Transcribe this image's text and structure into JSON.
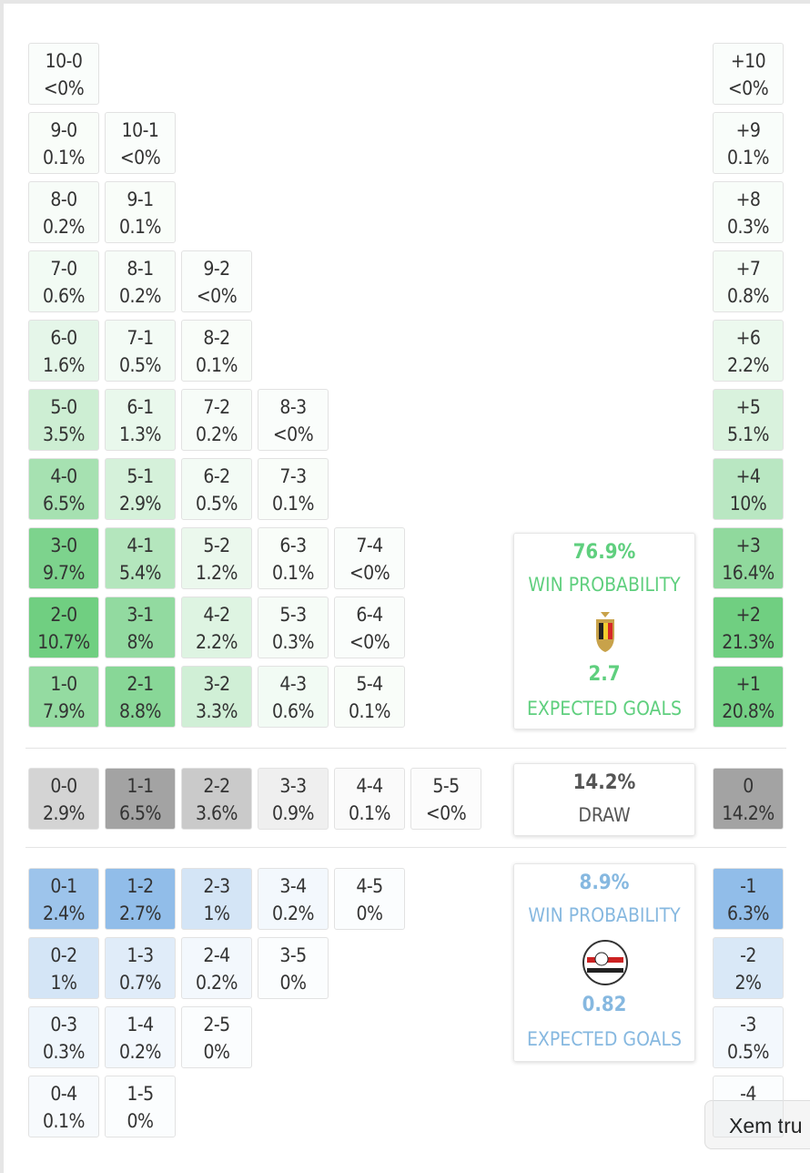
{
  "home": {
    "rows": [
      {
        "cells": [
          {
            "score": "10-0",
            "pct": "<0%"
          }
        ],
        "total": {
          "label": "+10",
          "pct": "<0%"
        }
      },
      {
        "cells": [
          {
            "score": "9-0",
            "pct": "0.1%"
          },
          {
            "score": "10-1",
            "pct": "<0%"
          }
        ],
        "total": {
          "label": "+9",
          "pct": "0.1%"
        }
      },
      {
        "cells": [
          {
            "score": "8-0",
            "pct": "0.2%"
          },
          {
            "score": "9-1",
            "pct": "0.1%"
          }
        ],
        "total": {
          "label": "+8",
          "pct": "0.3%"
        }
      },
      {
        "cells": [
          {
            "score": "7-0",
            "pct": "0.6%"
          },
          {
            "score": "8-1",
            "pct": "0.2%"
          },
          {
            "score": "9-2",
            "pct": "<0%"
          }
        ],
        "total": {
          "label": "+7",
          "pct": "0.8%"
        }
      },
      {
        "cells": [
          {
            "score": "6-0",
            "pct": "1.6%"
          },
          {
            "score": "7-1",
            "pct": "0.5%"
          },
          {
            "score": "8-2",
            "pct": "0.1%"
          }
        ],
        "total": {
          "label": "+6",
          "pct": "2.2%"
        }
      },
      {
        "cells": [
          {
            "score": "5-0",
            "pct": "3.5%"
          },
          {
            "score": "6-1",
            "pct": "1.3%"
          },
          {
            "score": "7-2",
            "pct": "0.2%"
          },
          {
            "score": "8-3",
            "pct": "<0%"
          }
        ],
        "total": {
          "label": "+5",
          "pct": "5.1%"
        }
      },
      {
        "cells": [
          {
            "score": "4-0",
            "pct": "6.5%"
          },
          {
            "score": "5-1",
            "pct": "2.9%"
          },
          {
            "score": "6-2",
            "pct": "0.5%"
          },
          {
            "score": "7-3",
            "pct": "0.1%"
          }
        ],
        "total": {
          "label": "+4",
          "pct": "10%"
        }
      },
      {
        "cells": [
          {
            "score": "3-0",
            "pct": "9.7%"
          },
          {
            "score": "4-1",
            "pct": "5.4%"
          },
          {
            "score": "5-2",
            "pct": "1.2%"
          },
          {
            "score": "6-3",
            "pct": "0.1%"
          },
          {
            "score": "7-4",
            "pct": "<0%"
          }
        ],
        "total": {
          "label": "+3",
          "pct": "16.4%"
        }
      },
      {
        "cells": [
          {
            "score": "2-0",
            "pct": "10.7%"
          },
          {
            "score": "3-1",
            "pct": "8%"
          },
          {
            "score": "4-2",
            "pct": "2.2%"
          },
          {
            "score": "5-3",
            "pct": "0.3%"
          },
          {
            "score": "6-4",
            "pct": "<0%"
          }
        ],
        "total": {
          "label": "+2",
          "pct": "21.3%"
        }
      },
      {
        "cells": [
          {
            "score": "1-0",
            "pct": "7.9%"
          },
          {
            "score": "2-1",
            "pct": "8.8%"
          },
          {
            "score": "3-2",
            "pct": "3.3%"
          },
          {
            "score": "4-3",
            "pct": "0.6%"
          },
          {
            "score": "5-4",
            "pct": "0.1%"
          }
        ],
        "total": {
          "label": "+1",
          "pct": "20.8%"
        }
      }
    ]
  },
  "draw": {
    "rows": [
      {
        "cells": [
          {
            "score": "0-0",
            "pct": "2.9%"
          },
          {
            "score": "1-1",
            "pct": "6.5%"
          },
          {
            "score": "2-2",
            "pct": "3.6%"
          },
          {
            "score": "3-3",
            "pct": "0.9%"
          },
          {
            "score": "4-4",
            "pct": "0.1%"
          },
          {
            "score": "5-5",
            "pct": "<0%"
          }
        ],
        "total": {
          "label": "0",
          "pct": "14.2%"
        }
      }
    ]
  },
  "away": {
    "rows": [
      {
        "cells": [
          {
            "score": "0-1",
            "pct": "2.4%"
          },
          {
            "score": "1-2",
            "pct": "2.7%"
          },
          {
            "score": "2-3",
            "pct": "1%"
          },
          {
            "score": "3-4",
            "pct": "0.2%"
          },
          {
            "score": "4-5",
            "pct": "0%"
          }
        ],
        "total": {
          "label": "-1",
          "pct": "6.3%"
        }
      },
      {
        "cells": [
          {
            "score": "0-2",
            "pct": "1%"
          },
          {
            "score": "1-3",
            "pct": "0.7%"
          },
          {
            "score": "2-4",
            "pct": "0.2%"
          },
          {
            "score": "3-5",
            "pct": "0%"
          }
        ],
        "total": {
          "label": "-2",
          "pct": "2%"
        }
      },
      {
        "cells": [
          {
            "score": "0-3",
            "pct": "0.3%"
          },
          {
            "score": "1-4",
            "pct": "0.2%"
          },
          {
            "score": "2-5",
            "pct": "0%"
          }
        ],
        "total": {
          "label": "-3",
          "pct": "0.5%"
        }
      },
      {
        "cells": [
          {
            "score": "0-4",
            "pct": "0.1%"
          },
          {
            "score": "1-5",
            "pct": "0%"
          }
        ],
        "total": {
          "label": "-4"
        }
      }
    ]
  },
  "home_summary": {
    "win": "76.9%",
    "win_label": "WIN PROBABILITY",
    "xg": "2.7",
    "xg_label": "EXPECTED GOALS"
  },
  "draw_summary": {
    "pct": "14.2%",
    "label": "DRAW"
  },
  "away_summary": {
    "win": "8.9%",
    "win_label": "WIN PROBABILITY",
    "xg": "0.82",
    "xg_label": "EXPECTED GOALS"
  },
  "tooltip": "Xem tru"
}
